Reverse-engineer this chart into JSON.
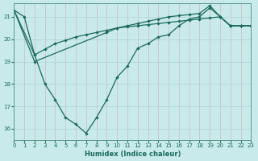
{
  "xlabel": "Humidex (Indice chaleur)",
  "bg_color": "#c8eaea",
  "grid_color": "#aed4d4",
  "line_color": "#1a6b5a",
  "xmin": 0,
  "xmax": 23,
  "ymin": 15.5,
  "ymax": 21.6,
  "yticks": [
    16,
    17,
    18,
    19,
    20,
    21
  ],
  "xticks": [
    0,
    1,
    2,
    3,
    4,
    5,
    6,
    7,
    8,
    9,
    10,
    11,
    12,
    13,
    14,
    15,
    16,
    17,
    18,
    19,
    20,
    21,
    22,
    23
  ],
  "line1_x": [
    0,
    1,
    2,
    3,
    4,
    5,
    6,
    7,
    8,
    9,
    10,
    11,
    12,
    13,
    14,
    15,
    16,
    17,
    18,
    19,
    20,
    21,
    22,
    23
  ],
  "line1_y": [
    21.3,
    21.0,
    19.3,
    18.0,
    17.3,
    16.5,
    16.2,
    15.8,
    16.5,
    17.3,
    18.3,
    18.8,
    19.6,
    19.8,
    20.1,
    20.2,
    20.6,
    20.9,
    21.0,
    21.4,
    21.0,
    20.6,
    20.6,
    20.6
  ],
  "line2_x": [
    0,
    2,
    3,
    4,
    5,
    6,
    7,
    8,
    9,
    10,
    11,
    12,
    13,
    14,
    15,
    16,
    17,
    18,
    19,
    20,
    21,
    22,
    23
  ],
  "line2_y": [
    21.3,
    19.3,
    19.55,
    19.8,
    19.95,
    20.1,
    20.2,
    20.3,
    20.4,
    20.5,
    20.55,
    20.6,
    20.65,
    20.7,
    20.75,
    20.8,
    20.85,
    20.9,
    20.95,
    21.0,
    20.6,
    20.6,
    20.6
  ],
  "line3_x": [
    0,
    2,
    9,
    10,
    11,
    12,
    13,
    14,
    15,
    16,
    17,
    18,
    19,
    20,
    21,
    22,
    23
  ],
  "line3_y": [
    21.3,
    19.0,
    20.3,
    20.5,
    20.6,
    20.7,
    20.8,
    20.9,
    21.0,
    21.05,
    21.1,
    21.15,
    21.5,
    21.0,
    20.6,
    20.6,
    20.6
  ]
}
